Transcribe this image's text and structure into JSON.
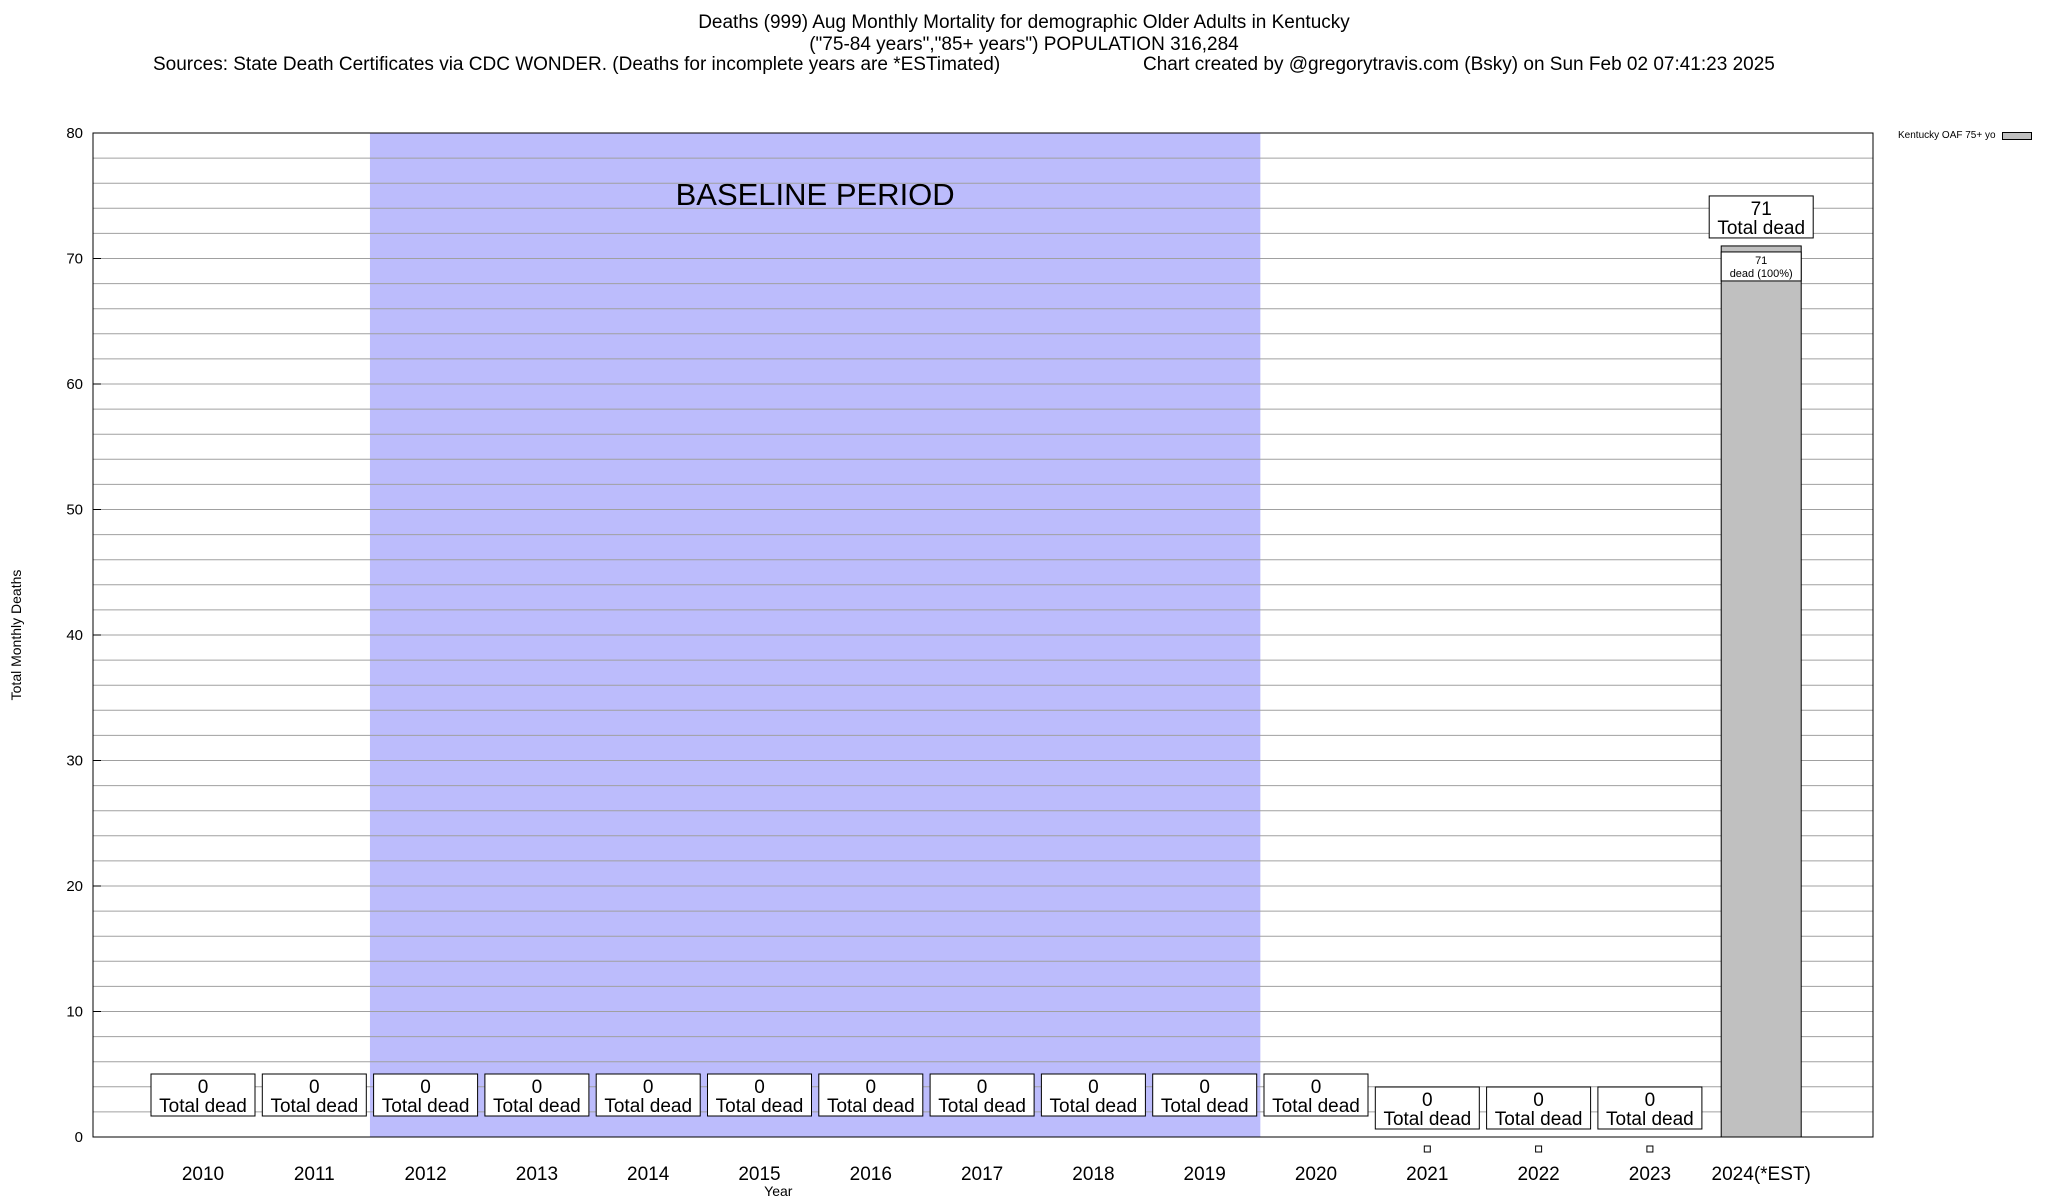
{
  "header": {
    "title": "Deaths (999) Aug Monthly Mortality for demographic Older Adults in Kentucky",
    "subtitle": "(\"75-84 years\",\"85+ years\") POPULATION 316,284",
    "sources": "Sources: State Death Certificates via CDC WONDER. (Deaths for incomplete years are *ESTimated)",
    "credit": "Chart created by @gregorytravis.com (Bsky) on Sun Feb 02 07:41:23 2025"
  },
  "legend": {
    "label": "Kentucky OAF 75+ yo"
  },
  "colors": {
    "baseline": "#bcbcfc",
    "bar": "#c0c0c0",
    "grid": "#a0a0a0"
  },
  "chart_data": {
    "type": "bar",
    "xlabel": "Year",
    "ylabel": "Total Monthly Deaths",
    "ylim": [
      0,
      80
    ],
    "yticks": [
      0,
      10,
      20,
      30,
      40,
      50,
      60,
      70,
      80
    ],
    "categories": [
      "2010",
      "2011",
      "2012",
      "2013",
      "2014",
      "2015",
      "2016",
      "2017",
      "2018",
      "2019",
      "2020",
      "2021",
      "2022",
      "2023",
      "2024(*EST)"
    ],
    "values": [
      0,
      0,
      0,
      0,
      0,
      0,
      0,
      0,
      0,
      0,
      0,
      0,
      0,
      0,
      71
    ],
    "total_label": "Total dead",
    "baseline": {
      "label": "BASELINE PERIOD",
      "from": "2012",
      "to": "2019"
    },
    "segment_labels": [
      {
        "category": "2024(*EST)",
        "value": "71",
        "text": "dead (100%)"
      }
    ],
    "grid": true,
    "legend_position": "top-right"
  }
}
